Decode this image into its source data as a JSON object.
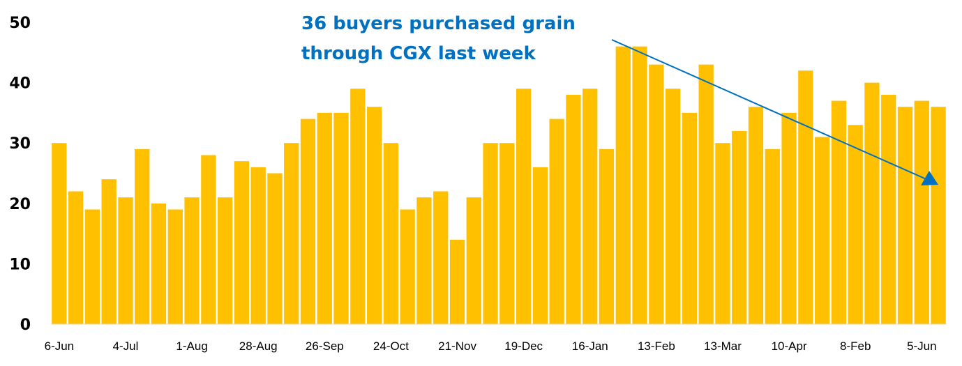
{
  "chart_data": {
    "type": "bar",
    "title": "",
    "xlabel": "",
    "ylabel": "",
    "ylim": [
      0,
      50
    ],
    "yticks": [
      0,
      10,
      20,
      30,
      40,
      50
    ],
    "grid": false,
    "bar_color": "#FFC000",
    "x_tick_labels": [
      "6-Jun",
      "4-Jul",
      "1-Aug",
      "28-Aug",
      "26-Sep",
      "24-Oct",
      "21-Nov",
      "19-Dec",
      "16-Jan",
      "13-Feb",
      "13-Mar",
      "10-Apr",
      "8-Feb",
      "5-Jun"
    ],
    "x_tick_every": 4,
    "values": [
      30,
      22,
      19,
      24,
      21,
      29,
      20,
      19,
      21,
      28,
      21,
      27,
      26,
      25,
      30,
      34,
      35,
      35,
      39,
      36,
      30,
      19,
      21,
      22,
      14,
      21,
      30,
      30,
      39,
      26,
      34,
      38,
      39,
      29,
      46,
      46,
      43,
      39,
      35,
      43,
      30,
      32,
      36,
      29,
      35,
      42,
      31,
      37,
      33,
      40,
      38,
      36,
      37,
      36
    ],
    "annotation": {
      "lines": [
        "36 buyers purchased grain",
        "through CGX last week"
      ],
      "color": "#0070C0",
      "arrow": "downward trend arrow toward last bar"
    }
  }
}
